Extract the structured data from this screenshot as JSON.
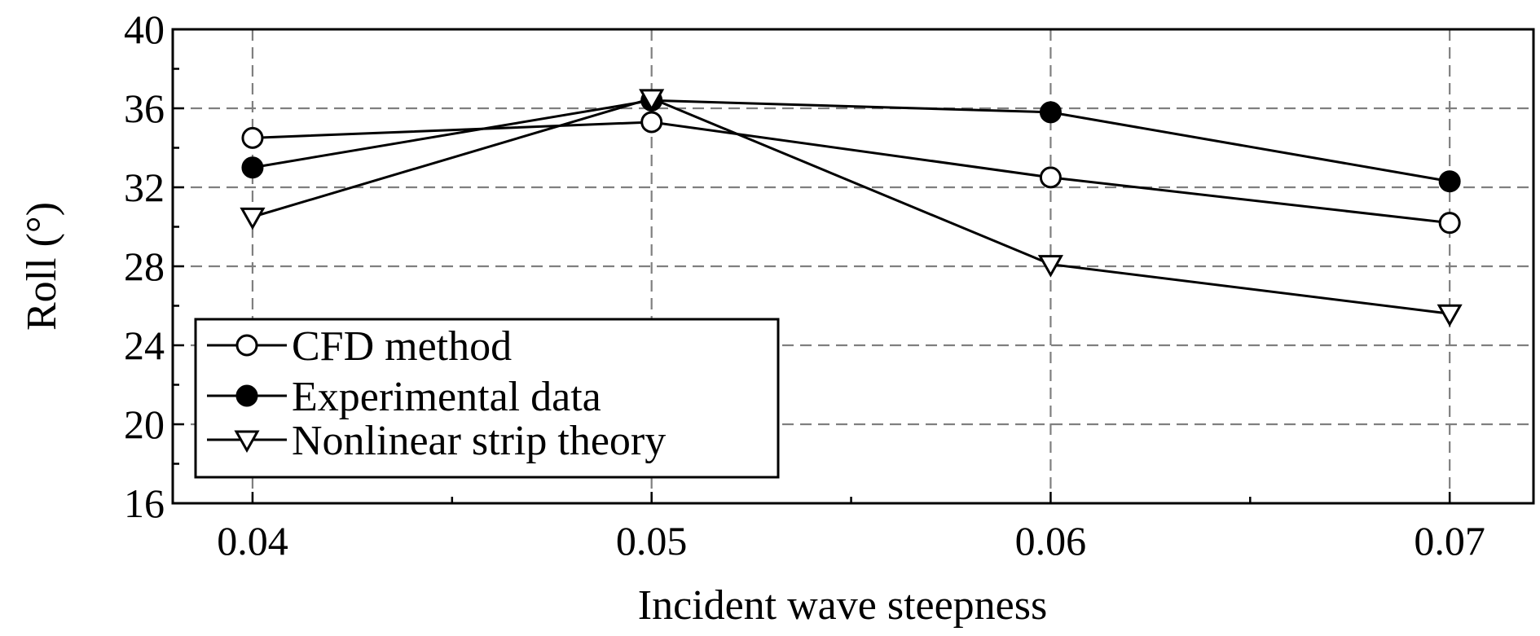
{
  "chart_data": {
    "type": "line",
    "title": "",
    "xlabel": "Incident wave steepness",
    "ylabel": "Roll (°)",
    "x": [
      0.04,
      0.05,
      0.06,
      0.07
    ],
    "x_tick_labels": [
      "0.04",
      "0.05",
      "0.06",
      "0.07"
    ],
    "xlim": [
      0.038,
      0.0721
    ],
    "ylim": [
      16,
      40
    ],
    "y_ticks": [
      16,
      20,
      24,
      28,
      32,
      36,
      40
    ],
    "y_tick_labels": [
      "16",
      "20",
      "24",
      "28",
      "32",
      "36",
      "40"
    ],
    "grid": true,
    "legend_position": "bottom-left",
    "series": [
      {
        "name": "CFD method",
        "marker": "open-circle",
        "values": [
          34.5,
          35.3,
          32.5,
          30.2
        ]
      },
      {
        "name": "Experimental data",
        "marker": "filled-circle",
        "values": [
          33.0,
          36.4,
          35.8,
          32.3
        ]
      },
      {
        "name": "Nonlinear strip theory",
        "marker": "open-triangle-down",
        "values": [
          30.5,
          36.5,
          28.1,
          25.6
        ]
      }
    ]
  }
}
